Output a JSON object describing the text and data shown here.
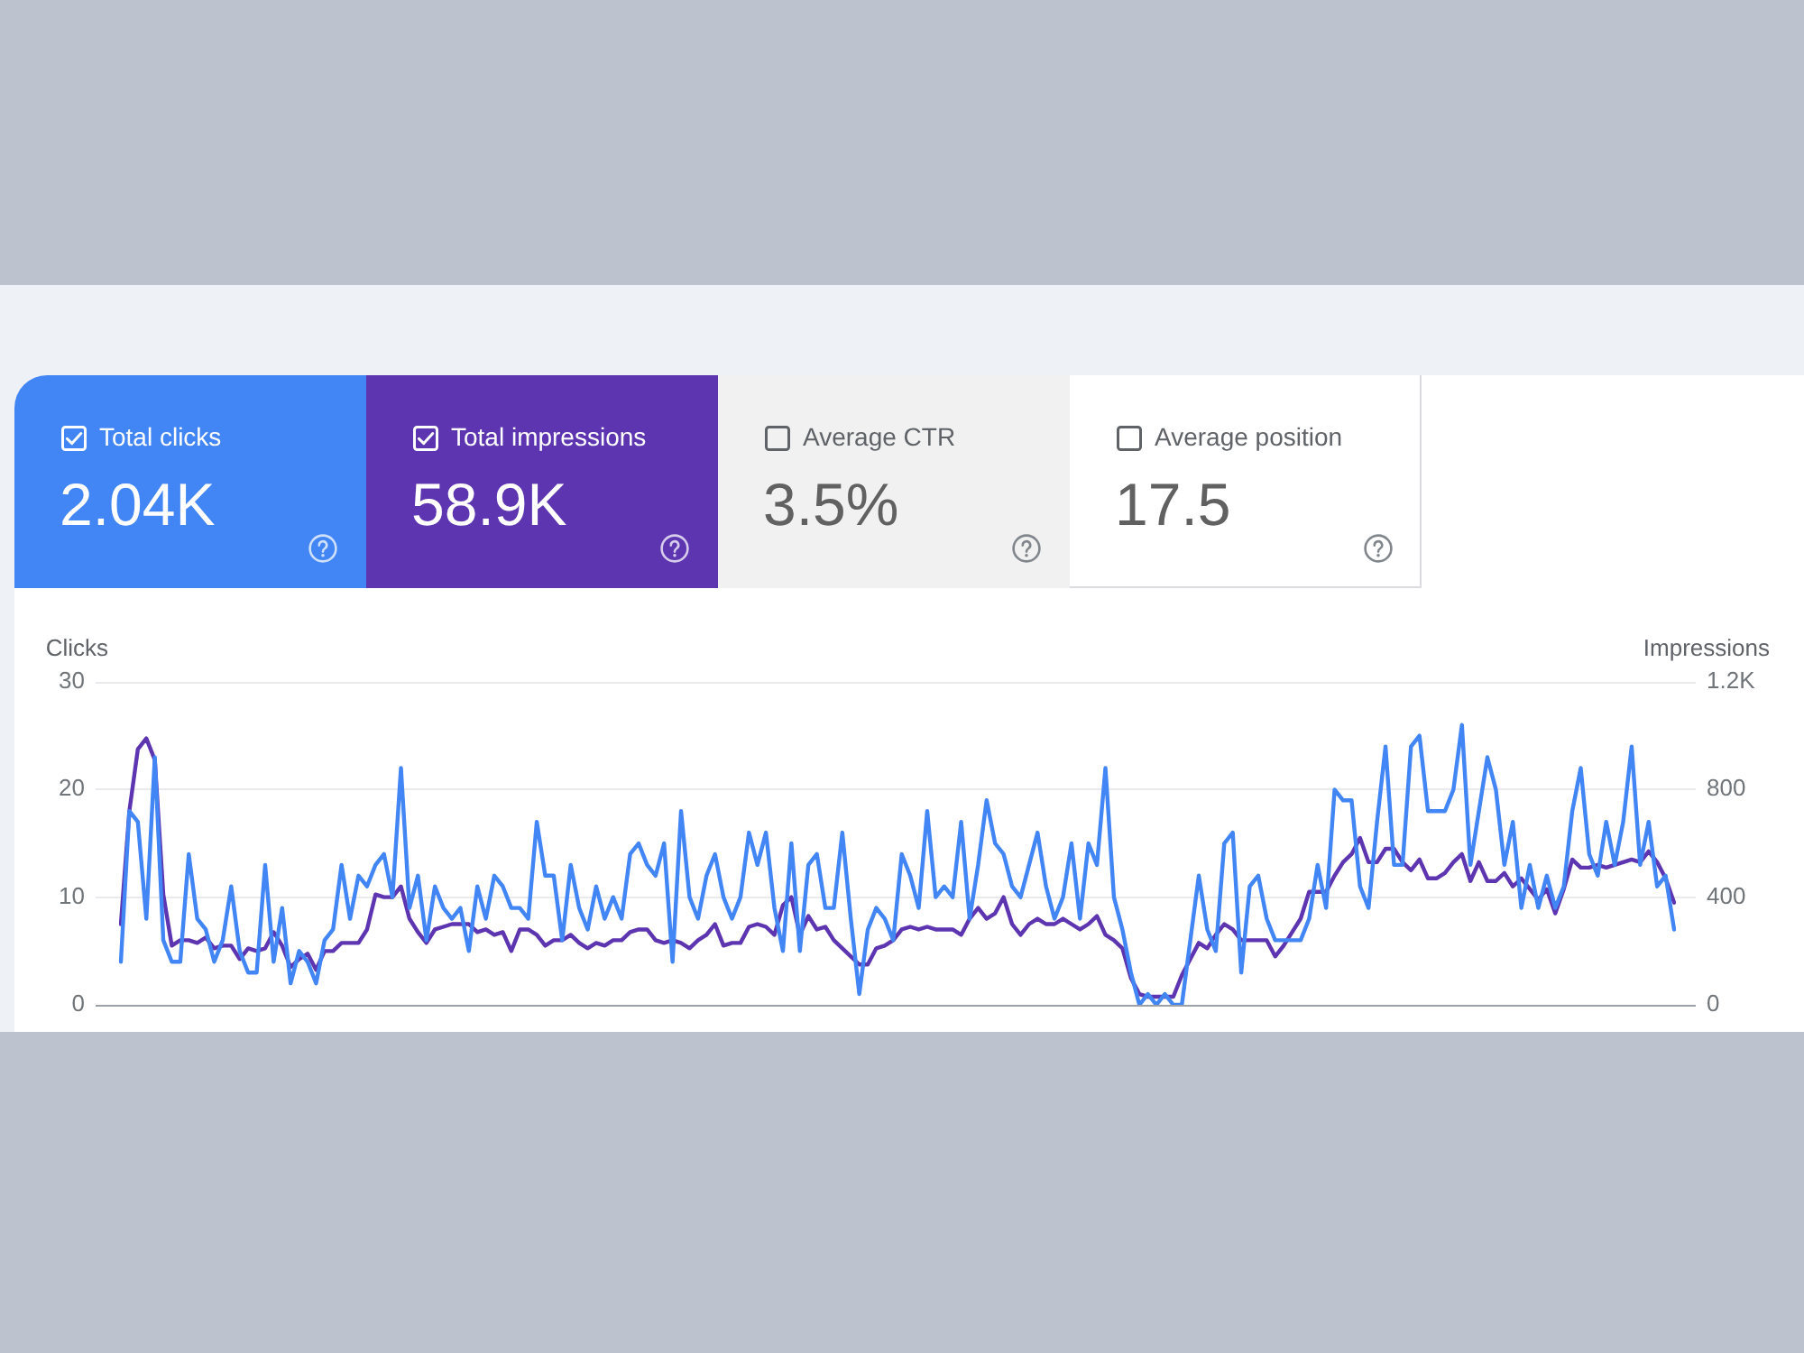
{
  "chart_data": [
    {
      "type": "other",
      "annotations": [
        "Total clicks",
        "2.04K",
        "Total impressions",
        "58.9K",
        "Average CTR",
        "3.5%",
        "Average position",
        "17.5"
      ]
    },
    {
      "type": "line",
      "ylabel": "Clicks",
      "y2label": "Impressions",
      "grid": "y",
      "marker": "none",
      "categories": [
        null,
        null,
        null,
        null,
        null,
        null,
        null,
        null,
        null,
        null,
        null,
        null,
        null,
        null,
        null,
        null,
        null,
        null,
        null,
        null,
        null,
        null,
        null,
        null,
        null,
        null,
        null,
        null,
        null,
        null,
        null,
        null,
        null,
        null,
        null,
        null,
        null,
        null,
        null,
        null,
        null,
        null,
        null,
        null,
        null,
        null,
        null,
        null,
        null,
        null,
        null,
        null,
        null,
        null,
        null,
        null,
        null,
        null,
        null,
        null,
        null,
        null,
        null,
        null,
        null,
        null,
        null,
        null,
        null,
        null,
        null,
        null,
        null,
        null,
        null,
        null,
        null,
        null,
        null,
        null,
        null,
        null,
        null,
        null,
        null,
        null,
        null,
        null,
        null,
        null,
        null,
        null,
        null,
        null,
        null,
        null,
        null,
        null,
        null,
        null,
        null,
        null,
        null,
        null,
        null,
        null,
        null,
        null,
        null,
        null,
        null,
        null,
        null,
        null,
        null,
        null,
        null,
        null,
        null,
        null,
        null,
        null,
        null,
        null,
        null,
        null,
        null,
        null,
        null,
        null,
        null,
        null,
        null,
        null,
        null,
        null,
        null,
        null,
        null,
        null,
        null,
        null,
        null,
        null,
        null,
        null,
        null,
        null,
        null,
        null,
        null,
        null,
        null,
        null,
        null,
        null,
        null,
        null,
        null,
        null,
        null,
        null,
        null,
        null,
        null,
        null,
        null,
        null,
        null,
        null,
        null,
        null,
        null,
        null,
        null,
        null,
        null,
        null,
        null,
        null,
        null,
        null,
        null,
        null
      ],
      "ylim": [
        0,
        30
      ],
      "yticks": [
        0,
        10,
        20,
        30
      ],
      "y2lim": [
        0,
        1200
      ],
      "y2ticks": [
        0,
        400,
        800,
        {
          "value": 1200,
          "label": "1.2K"
        }
      ],
      "series": [
        {
          "color": "#4285f4",
          "values": [
            4,
            18,
            17,
            8,
            23,
            6,
            4,
            4,
            14,
            8,
            7,
            4,
            6,
            11,
            5,
            3,
            3,
            13,
            4,
            9,
            2,
            5,
            4,
            2,
            6,
            7,
            13,
            8,
            12,
            11,
            13,
            14,
            10,
            22,
            9,
            12,
            6,
            11,
            9,
            8,
            9,
            5,
            11,
            8,
            12,
            11,
            9,
            9,
            8,
            17,
            12,
            12,
            6,
            13,
            9,
            7,
            11,
            8,
            10,
            8,
            14,
            15,
            13,
            12,
            15,
            4,
            18,
            10,
            8,
            12,
            14,
            10,
            8,
            10,
            16,
            13,
            16,
            9,
            5,
            15,
            5,
            13,
            14,
            9,
            9,
            16,
            8,
            1,
            7,
            9,
            8,
            6,
            14,
            12,
            9,
            18,
            10,
            11,
            10,
            17,
            8,
            13,
            19,
            15,
            14,
            11,
            10,
            13,
            16,
            11,
            8,
            10,
            15,
            8,
            15,
            13,
            22,
            10,
            7,
            3,
            0,
            1,
            0,
            1,
            0,
            0,
            6,
            12,
            7,
            5,
            15,
            16,
            3,
            11,
            12,
            8,
            6,
            6,
            6,
            6,
            8,
            13,
            9,
            20,
            19,
            19,
            11,
            9,
            17,
            24,
            13,
            13,
            24,
            25,
            18,
            18,
            18,
            20,
            26,
            13,
            18,
            23,
            20,
            13,
            17,
            9,
            13,
            9,
            12,
            9,
            11,
            18,
            22,
            14,
            12,
            17,
            13,
            17,
            24,
            13,
            17,
            11,
            12,
            7
          ]
        },
        {
          "color": "#5e35b1",
          "axis": "y2",
          "values": [
            300,
            720,
            950,
            990,
            910,
            410,
            220,
            240,
            240,
            230,
            250,
            210,
            220,
            220,
            170,
            210,
            200,
            210,
            270,
            220,
            140,
            170,
            190,
            130,
            200,
            200,
            230,
            230,
            230,
            280,
            410,
            400,
            400,
            440,
            320,
            270,
            230,
            280,
            290,
            300,
            300,
            300,
            270,
            280,
            260,
            270,
            200,
            280,
            280,
            260,
            220,
            240,
            240,
            260,
            230,
            210,
            230,
            220,
            240,
            240,
            270,
            280,
            280,
            240,
            230,
            240,
            230,
            210,
            240,
            260,
            300,
            220,
            230,
            230,
            290,
            300,
            290,
            260,
            370,
            400,
            260,
            330,
            280,
            290,
            240,
            210,
            180,
            150,
            150,
            210,
            220,
            240,
            280,
            290,
            280,
            290,
            280,
            280,
            280,
            260,
            320,
            360,
            320,
            340,
            400,
            300,
            260,
            300,
            320,
            300,
            300,
            320,
            300,
            280,
            300,
            330,
            260,
            240,
            210,
            100,
            40,
            30,
            30,
            30,
            30,
            110,
            170,
            230,
            210,
            260,
            300,
            280,
            240,
            240,
            240,
            240,
            180,
            220,
            270,
            320,
            420,
            420,
            420,
            480,
            530,
            560,
            620,
            530,
            530,
            580,
            580,
            530,
            500,
            540,
            470,
            470,
            490,
            530,
            560,
            460,
            530,
            460,
            460,
            490,
            440,
            470,
            430,
            390,
            430,
            340,
            430,
            540,
            510,
            510,
            520,
            510,
            520,
            530,
            540,
            530,
            570,
            530,
            470,
            380
          ]
        }
      ]
    }
  ]
}
